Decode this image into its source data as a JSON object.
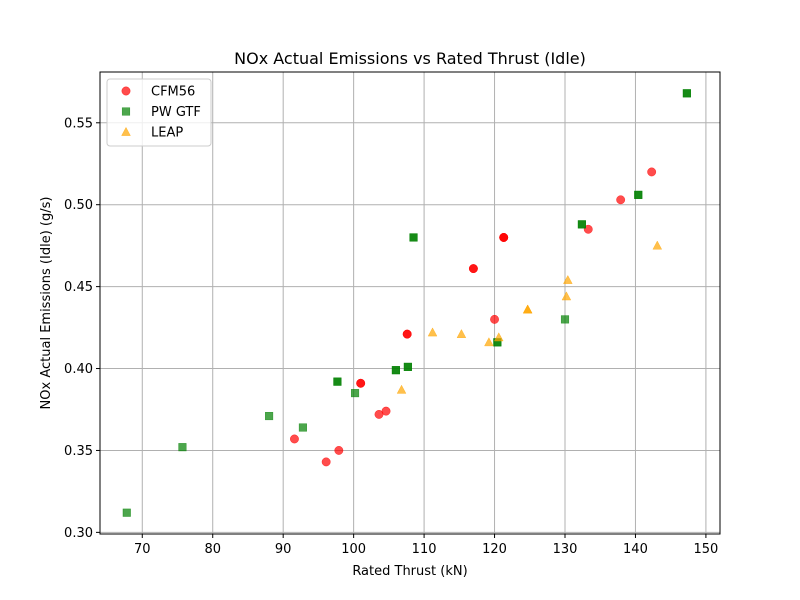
{
  "chart_data": {
    "type": "scatter",
    "title": "NOx Actual Emissions vs Rated Thrust (Idle)",
    "xlabel": "Rated Thrust (kN)",
    "ylabel": "NOx Actual Emissions (Idle) (g/s)",
    "xlim": [
      64,
      152
    ],
    "ylim": [
      0.299,
      0.581
    ],
    "xticks": [
      70,
      80,
      90,
      100,
      110,
      120,
      130,
      140,
      150
    ],
    "yticks": [
      0.3,
      0.35,
      0.4,
      0.45,
      0.5,
      0.55
    ],
    "ytick_labels": [
      "0.30",
      "0.35",
      "0.40",
      "0.45",
      "0.50",
      "0.55"
    ],
    "grid": true,
    "legend_position": "top-left",
    "series": [
      {
        "name": "CFM56",
        "marker": "circle",
        "color": "#ff0000",
        "points": [
          [
            91.6,
            0.357
          ],
          [
            96.1,
            0.343
          ],
          [
            97.9,
            0.35
          ],
          [
            101.0,
            0.391
          ],
          [
            101.0,
            0.391
          ],
          [
            103.6,
            0.372
          ],
          [
            104.6,
            0.374
          ],
          [
            107.6,
            0.421
          ],
          [
            107.6,
            0.421
          ],
          [
            117.0,
            0.461
          ],
          [
            117.0,
            0.461
          ],
          [
            120.0,
            0.43
          ],
          [
            121.3,
            0.48
          ],
          [
            121.3,
            0.48
          ],
          [
            121.3,
            0.48
          ],
          [
            133.3,
            0.485
          ],
          [
            137.9,
            0.503
          ],
          [
            142.3,
            0.52
          ]
        ]
      },
      {
        "name": "PW GTF",
        "marker": "square",
        "color": "#008000",
        "points": [
          [
            67.8,
            0.312
          ],
          [
            75.7,
            0.352
          ],
          [
            88.0,
            0.371
          ],
          [
            92.8,
            0.364
          ],
          [
            97.7,
            0.392
          ],
          [
            97.7,
            0.392
          ],
          [
            100.2,
            0.385
          ],
          [
            106.0,
            0.399
          ],
          [
            106.0,
            0.399
          ],
          [
            107.7,
            0.401
          ],
          [
            107.7,
            0.401
          ],
          [
            108.5,
            0.48
          ],
          [
            108.5,
            0.48
          ],
          [
            120.4,
            0.416
          ],
          [
            120.4,
            0.416
          ],
          [
            130.0,
            0.43
          ],
          [
            132.4,
            0.488
          ],
          [
            132.4,
            0.488
          ],
          [
            140.4,
            0.506
          ],
          [
            140.4,
            0.506
          ],
          [
            147.3,
            0.568
          ],
          [
            147.3,
            0.568
          ]
        ]
      },
      {
        "name": "LEAP",
        "marker": "triangle",
        "color": "#ffa500",
        "points": [
          [
            106.8,
            0.387
          ],
          [
            111.2,
            0.422
          ],
          [
            115.3,
            0.421
          ],
          [
            119.2,
            0.416
          ],
          [
            120.6,
            0.419
          ],
          [
            124.7,
            0.436
          ],
          [
            124.7,
            0.436
          ],
          [
            130.2,
            0.444
          ],
          [
            130.4,
            0.454
          ],
          [
            143.1,
            0.475
          ]
        ]
      }
    ]
  }
}
